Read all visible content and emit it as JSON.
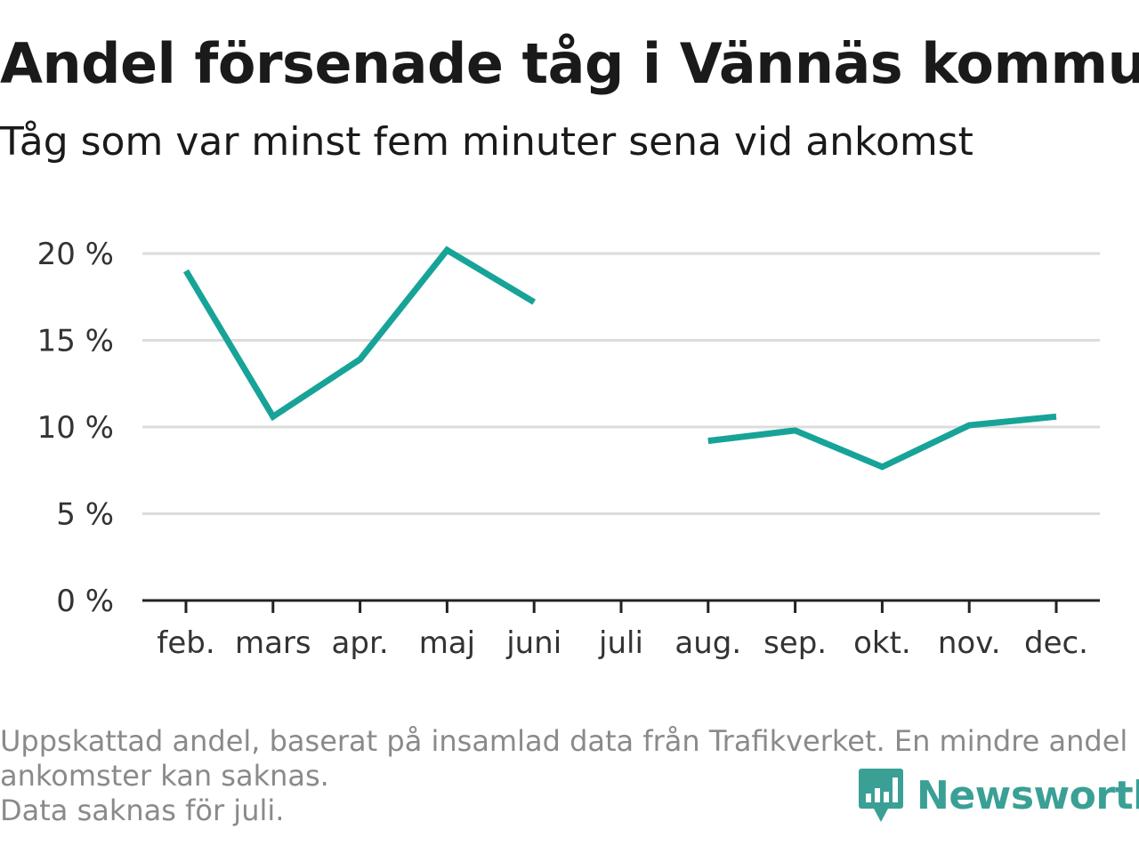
{
  "header": {
    "title": "Andel försenade tåg i Vännäs kommun",
    "subtitle": "Tåg som var minst fem minuter sena vid ankomst"
  },
  "chart_data": {
    "type": "line",
    "title": "Andel försenade tåg i Vännäs kommun",
    "subtitle": "Tåg som var minst fem minuter sena vid ankomst",
    "xlabel": "",
    "ylabel": "",
    "categories": [
      "feb.",
      "mars",
      "apr.",
      "maj",
      "juni",
      "juli",
      "aug.",
      "sep.",
      "okt.",
      "nov.",
      "dec."
    ],
    "series": [
      {
        "values": [
          19.0,
          10.6,
          13.9,
          20.2,
          17.2,
          null,
          9.2,
          9.8,
          7.7,
          10.1,
          10.6
        ],
        "color": "#17a398"
      }
    ],
    "yticks": [
      0,
      5,
      10,
      15,
      20
    ],
    "ytick_labels": [
      "0 %",
      "5 %",
      "10 %",
      "15 %",
      "20 %"
    ],
    "ylim": [
      0,
      20
    ],
    "grid": true,
    "legend": "none"
  },
  "footer": {
    "note_line1": "Uppskattad andel, baserat på insamlad data från Trafikverket. En mindre andel",
    "note_line2": "ankomster kan saknas.",
    "note_line3": "Data saknas för juli.",
    "brand": "Newsworthy",
    "brand_icon": "bar-chart-speech-bubble-icon",
    "brand_color": "#3aa096"
  },
  "colors": {
    "line": "#17a398",
    "grid": "#dcdcdc",
    "axis": "#222222",
    "footnote": "#8a8a8a"
  }
}
